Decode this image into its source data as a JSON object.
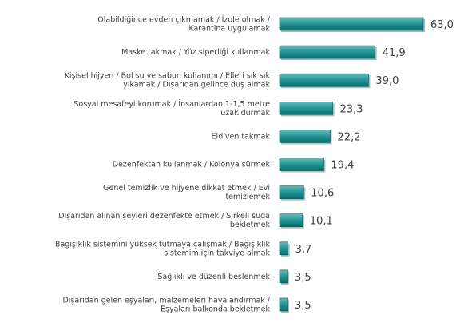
{
  "chart_data": {
    "type": "bar",
    "orientation": "horizontal",
    "categories": [
      [
        "Olabildiğince evden çıkmamak / İzole olmak /",
        "Karantina uygulamak"
      ],
      [
        "Maske takmak / Yüz siperliği kullanmak"
      ],
      [
        "Kişisel hijyen / Bol su ve sabun kullanımı  / Elleri sık sık",
        "yıkamak / Dışarıdan gelince duş almak"
      ],
      [
        "Sosyal mesafeyi korumak / İnsanlardan 1-1,5 metre",
        "uzak durmak"
      ],
      [
        "Eldiven takmak"
      ],
      [
        "Dezenfektan kullanmak / Kolonya sürmek"
      ],
      [
        "Genel temizlik  ve hijyene dikkat etmek / Evi",
        "temizlemek"
      ],
      [
        "Dışarıdan alınan şeyleri dezenfekte etmek / Sirkeli suda",
        "bekletmek"
      ],
      [
        "Bağışıklık sistemini yüksek tutmaya çalışmak / Bağışıklık",
        "sistemim için takviye almak"
      ],
      [
        "Sağlıklı ve düzenli beslenmek"
      ],
      [
        "Dışarıdan gelen eşyaları, malzemeleri havalandırmak /",
        "Eşyaları balkonda bekletmek"
      ]
    ],
    "values": [
      63.0,
      41.9,
      39.0,
      23.3,
      22.2,
      19.4,
      10.6,
      10.1,
      3.7,
      3.5,
      3.5
    ],
    "value_labels": [
      "63,0",
      "41,9",
      "39,0",
      "23,3",
      "22,2",
      "19,4",
      "10,6",
      "10,1",
      "3,7",
      "3,5",
      "3,5"
    ],
    "xlim": [
      0,
      63.0
    ],
    "grid": false,
    "colors": {
      "bar_light": "#5fbcbc",
      "bar_dark": "#0c6b6b",
      "bar_stroke": "#0a5656",
      "shadow": "#0a3d3d",
      "text": "#404040"
    }
  }
}
